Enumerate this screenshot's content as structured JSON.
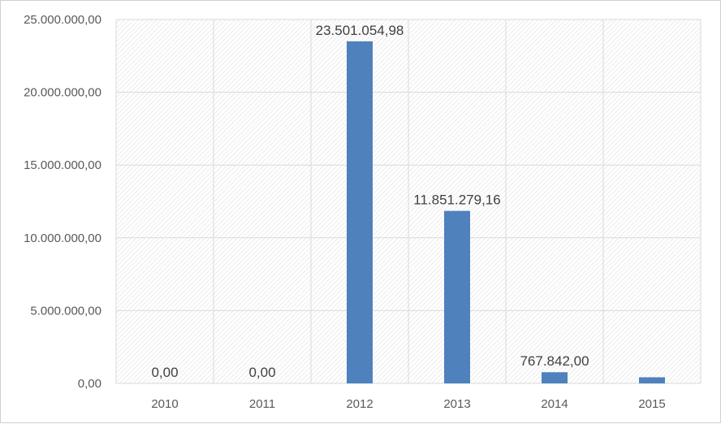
{
  "chart_data": {
    "type": "bar",
    "categories": [
      "2010",
      "2011",
      "2012",
      "2013",
      "2014",
      "2015"
    ],
    "values": [
      0,
      0,
      23501054.98,
      11851279.16,
      767842.0,
      420000
    ],
    "data_labels": [
      "0,00",
      "0,00",
      "23.501.054,98",
      "11.851.279,16",
      "767.842,00",
      ""
    ],
    "y_ticks": [
      0,
      5000000,
      10000000,
      15000000,
      20000000,
      25000000
    ],
    "y_tick_labels": [
      "0,00",
      "5.000.000,00",
      "10.000.000,00",
      "15.000.000,00",
      "20.000.000,00",
      "25.000.000,00"
    ],
    "ylim": [
      0,
      25000000
    ],
    "grid": true,
    "bar_color": "#4F81BD",
    "title": "",
    "xlabel": "",
    "ylabel": ""
  }
}
